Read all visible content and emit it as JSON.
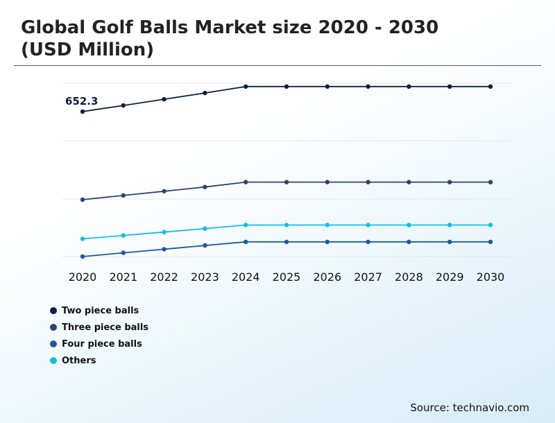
{
  "title": "Global Golf Balls Market size 2020 - 2030 (USD Million)",
  "source": "Source: technavio.com",
  "chart_data": {
    "type": "line",
    "title": "Global Golf Balls Market size 2020 - 2030 (USD Million)",
    "x": [
      "2020",
      "2021",
      "2022",
      "2023",
      "2024",
      "2025",
      "2026",
      "2027",
      "2028",
      "2029",
      "2030"
    ],
    "ylim": [
      0,
      780
    ],
    "grid": true,
    "xlabel": "",
    "ylabel": "",
    "legend_position": "bottom-left",
    "annotations": [
      {
        "series": "Two piece balls",
        "x": "2020",
        "label": "652.3"
      }
    ],
    "series": [
      {
        "name": "Two piece balls",
        "color": "#0b1f44",
        "values": [
          652.3,
          680,
          708,
          736,
          765,
          765,
          765,
          765,
          765,
          765,
          765
        ]
      },
      {
        "name": "Three piece balls",
        "color": "#2d4272",
        "values": [
          256,
          275,
          294,
          313,
          335,
          335,
          335,
          335,
          335,
          335,
          335
        ]
      },
      {
        "name": "Four piece balls",
        "color": "#1f56a1",
        "values": [
          0,
          17,
          33,
          50,
          66,
          66,
          66,
          66,
          66,
          66,
          66
        ]
      },
      {
        "name": "Others",
        "color": "#12bfe0",
        "values": [
          80,
          95,
          110,
          126,
          142,
          142,
          142,
          142,
          142,
          142,
          142
        ]
      }
    ]
  }
}
